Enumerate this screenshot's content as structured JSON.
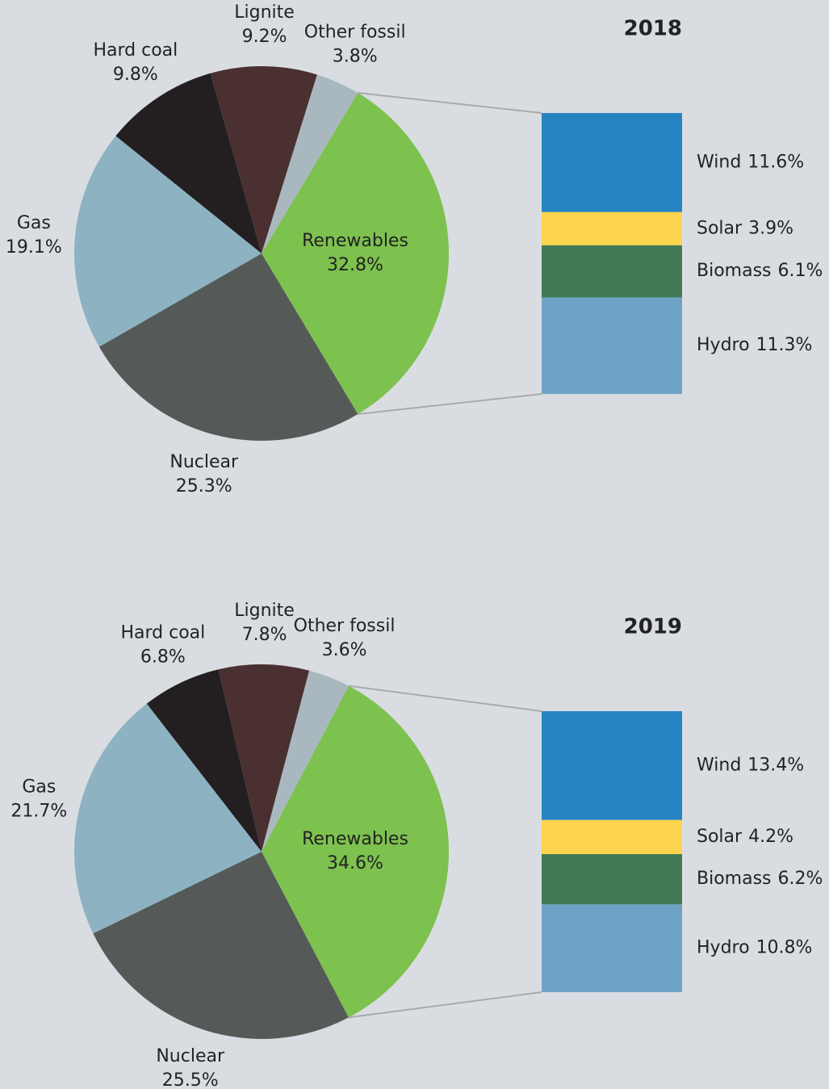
{
  "chart_data": [
    {
      "type": "pie",
      "title": "2018",
      "categories": [
        "Renewables",
        "Nuclear",
        "Gas",
        "Hard coal",
        "Lignite",
        "Other fossil"
      ],
      "values": [
        32.8,
        25.3,
        19.1,
        9.8,
        9.2,
        3.8
      ],
      "value_labels": [
        "32.8%",
        "25.3%",
        "19.1%",
        "9.8%",
        "9.2%",
        "3.8%"
      ],
      "colors": [
        "#7dc14f",
        "#555a58",
        "#8db3c2",
        "#231f20",
        "#4a3030",
        "#a9b8bf"
      ],
      "breakdown": {
        "categories": [
          "Wind",
          "Solar",
          "Biomass",
          "Hydro"
        ],
        "values": [
          11.6,
          3.9,
          6.1,
          11.3
        ],
        "value_labels": [
          "11.6%",
          "3.9%",
          "6.1%",
          "11.3%"
        ],
        "colors": [
          "#2584c1",
          "#fdd44e",
          "#427a55",
          "#6fa3c5"
        ]
      }
    },
    {
      "type": "pie",
      "title": "2019",
      "categories": [
        "Renewables",
        "Nuclear",
        "Gas",
        "Hard coal",
        "Lignite",
        "Other fossil"
      ],
      "values": [
        34.6,
        25.5,
        21.7,
        6.8,
        7.8,
        3.6
      ],
      "value_labels": [
        "34.6%",
        "25.5%",
        "21.7%",
        "6.8%",
        "7.8%",
        "3.6%"
      ],
      "colors": [
        "#7dc14f",
        "#555a58",
        "#8db3c2",
        "#231f20",
        "#4a3030",
        "#a9b8bf"
      ],
      "breakdown": {
        "categories": [
          "Wind",
          "Solar",
          "Biomass",
          "Hydro"
        ],
        "values": [
          13.4,
          4.2,
          6.2,
          10.8
        ],
        "value_labels": [
          "13.4%",
          "4.2%",
          "6.2%",
          "10.8%"
        ],
        "colors": [
          "#2584c1",
          "#fdd44e",
          "#427a55",
          "#6fa3c5"
        ]
      }
    }
  ]
}
